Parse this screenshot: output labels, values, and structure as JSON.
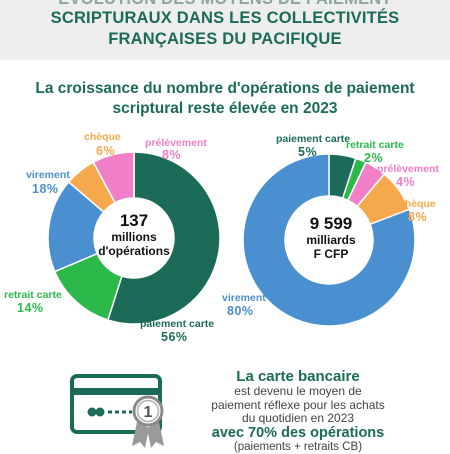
{
  "header": {
    "line1": "ÉVOLUTION DES MOYENS DE PAIEMENT",
    "line2": "SCRIPTURAUX DANS LES COLLECTIVITÉS",
    "line3": "FRANÇAISES DU PACIFIQUE"
  },
  "subtitle": {
    "line1": "La croissance du nombre d'opérations de paiement",
    "line2": "scriptural reste élevée en 2023"
  },
  "chart_data": [
    {
      "type": "pie",
      "donut": true,
      "center_number": "137",
      "center_line2": "millions",
      "center_line3": "d'opérations",
      "slices": [
        {
          "label": "paiement carte",
          "value": 56,
          "pct_text": "56%",
          "color": "#1b6b58"
        },
        {
          "label": "retrait carte",
          "value": 14,
          "pct_text": "14%",
          "color": "#2db84a"
        },
        {
          "label": "virement",
          "value": 18,
          "pct_text": "18%",
          "color": "#4a8fcf"
        },
        {
          "label": "chèque",
          "value": 6,
          "pct_text": "6%",
          "color": "#f5a94c"
        },
        {
          "label": "prélèvement",
          "value": 8,
          "pct_text": "8%",
          "color": "#f07fc7"
        }
      ]
    },
    {
      "type": "pie",
      "donut": true,
      "center_number": "9 599",
      "center_line2": "milliards",
      "center_line3": "F CFP",
      "slices": [
        {
          "label": "paiement carte",
          "value": 5,
          "pct_text": "5%",
          "color": "#1b6b58"
        },
        {
          "label": "retrait carte",
          "value": 2,
          "pct_text": "2%",
          "color": "#2db84a"
        },
        {
          "label": "prélèvement",
          "value": 4,
          "pct_text": "4%",
          "color": "#f07fc7"
        },
        {
          "label": "chèque",
          "value": 8,
          "pct_text": "8%",
          "color": "#f5a94c"
        },
        {
          "label": "virement",
          "value": 80,
          "pct_text": "80%",
          "color": "#4a8fcf"
        }
      ]
    }
  ],
  "bottom": {
    "title": "La carte bancaire",
    "line1": "est devenu le moyen de",
    "line2": "paiement réflexe pour les achats",
    "line3": "du quotidien en 2023",
    "highlight": "avec 70% des opérations",
    "note": "(paiements + retraits CB)"
  },
  "badge": {
    "number": "1"
  },
  "icons": {
    "card": "credit-card-icon",
    "medal": "medal-icon"
  },
  "colors": {
    "title_green": "#1b6b58",
    "header_bg": "#eeeeee"
  }
}
